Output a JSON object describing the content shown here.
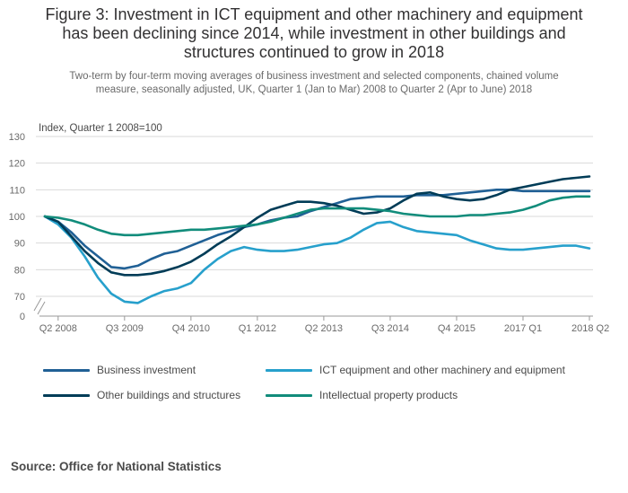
{
  "figure": {
    "title": "Figure 3: Investment in ICT equipment and other machinery and equipment\nhas been declining since 2014, while investment in other buildings and\nstructures continued to grow in 2018",
    "subtitle": "Two-term by four-term moving averages of business investment and selected components, chained volume\nmeasure, seasonally adjusted, UK, Quarter 1 (Jan to Mar) 2008 to Quarter 2 (Apr to June) 2018",
    "source": "Source: Office for National Statistics"
  },
  "colors": {
    "business": "#206095",
    "ict": "#27a0cc",
    "buildings": "#003c57",
    "ip": "#118c7b",
    "grid": "#d9d9d9",
    "axis_text": "#6a6a6a"
  },
  "chart_data": {
    "type": "line",
    "ylabel": "Index, Quarter 1 2008=100",
    "xlabel": "",
    "yticks": [
      0,
      70,
      80,
      90,
      100,
      110,
      120,
      130
    ],
    "ylim": [
      65,
      130
    ],
    "axis_break": true,
    "x_tick_labels": [
      {
        "label": "Q2 2008",
        "period": "2008 Q2"
      },
      {
        "label": "Q3 2009",
        "period": "2009 Q3"
      },
      {
        "label": "Q4 2010",
        "period": "2010 Q4"
      },
      {
        "label": "Q1 2012",
        "period": "2012 Q1"
      },
      {
        "label": "Q2 2013",
        "period": "2013 Q2"
      },
      {
        "label": "Q3 2014",
        "period": "2014 Q3"
      },
      {
        "label": "Q4 2015",
        "period": "2015 Q4"
      },
      {
        "label": "2017 Q1",
        "period": "2017 Q1"
      },
      {
        "label": "2018 Q2",
        "period": "2018 Q2"
      }
    ],
    "x": [
      "2008 Q1",
      "2008 Q2",
      "2008 Q3",
      "2008 Q4",
      "2009 Q1",
      "2009 Q2",
      "2009 Q3",
      "2009 Q4",
      "2010 Q1",
      "2010 Q2",
      "2010 Q3",
      "2010 Q4",
      "2011 Q1",
      "2011 Q2",
      "2011 Q3",
      "2011 Q4",
      "2012 Q1",
      "2012 Q2",
      "2012 Q3",
      "2012 Q4",
      "2013 Q1",
      "2013 Q2",
      "2013 Q3",
      "2013 Q4",
      "2014 Q1",
      "2014 Q2",
      "2014 Q3",
      "2014 Q4",
      "2015 Q1",
      "2015 Q2",
      "2015 Q3",
      "2015 Q4",
      "2016 Q1",
      "2016 Q2",
      "2016 Q3",
      "2016 Q4",
      "2017 Q1",
      "2017 Q2",
      "2017 Q3",
      "2017 Q4",
      "2018 Q1",
      "2018 Q2"
    ],
    "grid": true,
    "legend_position": "bottom",
    "series": [
      {
        "name": "Business investment",
        "color_key": "business",
        "values": [
          100,
          98,
          94,
          89,
          85,
          81,
          80.5,
          81.5,
          84,
          86,
          87,
          89,
          91,
          93,
          94.5,
          96,
          97,
          98.5,
          99.5,
          100,
          102,
          103.5,
          105,
          106.5,
          107,
          107.5,
          107.5,
          107.5,
          108,
          108,
          108,
          108.5,
          109,
          109.5,
          110,
          110,
          109.5,
          109.5,
          109.5,
          109.5,
          109.5,
          109.5
        ]
      },
      {
        "name": "ICT equipment and other machinery and equipment",
        "color_key": "ict",
        "values": [
          100,
          97,
          92,
          85,
          77,
          71,
          68,
          67.5,
          70,
          72,
          73,
          75,
          80,
          84,
          87,
          88.5,
          87.5,
          87,
          87,
          87.5,
          88.5,
          89.5,
          90,
          92,
          95,
          97.5,
          98,
          96,
          94.5,
          94,
          93.5,
          93,
          91,
          89.5,
          88,
          87.5,
          87.5,
          88,
          88.5,
          89,
          89,
          88
        ]
      },
      {
        "name": "Other buildings and structures",
        "color_key": "buildings",
        "values": [
          100,
          98,
          92.5,
          87,
          82.5,
          79,
          78,
          78,
          78.5,
          79.5,
          81,
          83,
          86,
          89.5,
          92.5,
          96,
          99.5,
          102.5,
          104,
          105.5,
          105.5,
          105,
          104,
          102.5,
          101,
          101.5,
          103,
          106,
          108.5,
          109,
          107.5,
          106.5,
          106,
          106.5,
          108,
          110,
          111,
          112,
          113,
          114,
          114.5,
          115
        ]
      },
      {
        "name": "Intellectual property products",
        "color_key": "ip",
        "values": [
          100,
          99.5,
          98.5,
          97,
          95,
          93.5,
          93,
          93,
          93.5,
          94,
          94.5,
          95,
          95,
          95.5,
          96,
          96.5,
          97,
          98,
          99.5,
          101,
          102.5,
          103,
          103,
          103,
          103,
          102.5,
          102,
          101,
          100.5,
          100,
          100,
          100,
          100.5,
          100.5,
          101,
          101.5,
          102.5,
          104,
          106,
          107,
          107.5,
          107.5
        ]
      }
    ]
  }
}
